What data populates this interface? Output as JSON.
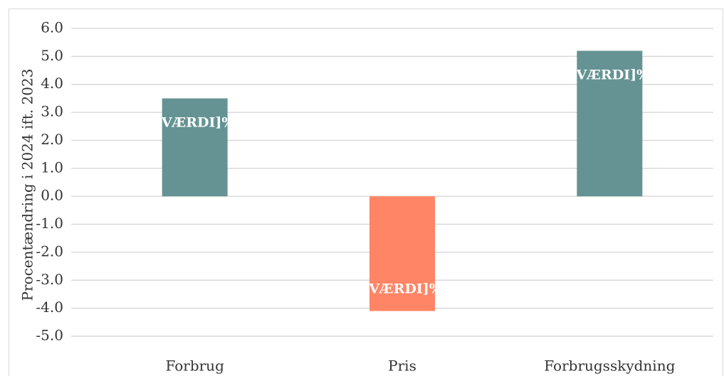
{
  "chart_data": {
    "type": "bar",
    "y_label": "Procentændring i 2024 ift. 2023",
    "categories": [
      "Forbrug",
      "Pris",
      "Forbrugsskydning"
    ],
    "values": [
      3.5,
      -4.1,
      5.2
    ],
    "value_labels": [
      "[VÆRDI]%",
      "[VÆRDI]%",
      "[VÆRDI]%"
    ],
    "colors": [
      "#659393",
      "#ff8566",
      "#659393"
    ],
    "ylim": [
      -5,
      6
    ],
    "yticks": [
      {
        "value": -5,
        "label": "-5.0"
      },
      {
        "value": -4,
        "label": "-4.0"
      },
      {
        "value": -3,
        "label": "-3.0"
      },
      {
        "value": -2,
        "label": "-2.0"
      },
      {
        "value": -1,
        "label": "-1.0"
      },
      {
        "value": 0,
        "label": "0.0"
      },
      {
        "value": 1,
        "label": "1.0"
      },
      {
        "value": 2,
        "label": "2.0"
      },
      {
        "value": 3,
        "label": "3.0"
      },
      {
        "value": 4,
        "label": "4.0"
      },
      {
        "value": 5,
        "label": "5.0"
      },
      {
        "value": 6,
        "label": "6.0"
      }
    ],
    "grid": true
  }
}
